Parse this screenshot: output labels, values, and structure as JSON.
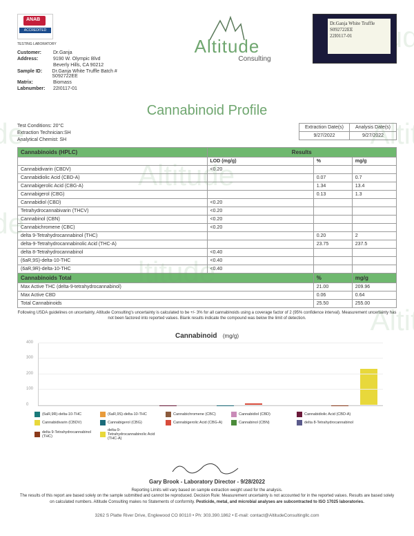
{
  "header": {
    "customer_label": "Customer:",
    "customer": "Dr.Ganja",
    "address_label": "Address:",
    "address1": "9190 W. Olympic Blvd",
    "address2": "Beverly Hills, CA 90212",
    "sample_id_label": "Sample ID:",
    "sample_id": "Dr.Ganja White Truffle Batch # S092722EE",
    "matrix_label": "Matrix:",
    "matrix": "Biomass",
    "labnumber_label": "Labnumber:",
    "labnumber": "22I0117-01",
    "accredited": "ACCREDITED",
    "testlab": "TESTING LABORATORY"
  },
  "logo": {
    "brand": "Altitude",
    "sub": "Consulting"
  },
  "photo": {
    "l1": "Dr.Ganja White Truffle",
    "l2": "S092722EE",
    "l3": "22I0117-01"
  },
  "title": "Cannabinoid Profile",
  "meta": {
    "tc": "Test Conditions: 20°C",
    "et": "Extraction Technician:SH",
    "ac": "Analytical Chemist: SH",
    "ed_label": "Extraction Date(s)",
    "ad_label": "Analysis Date(s)",
    "ed": "9/27/2022",
    "ad": "9/27/2022"
  },
  "t1": {
    "h_left": "Cannabinoids (HPLC)",
    "h_right": "Results",
    "c_lod": "LOD (mg/g)",
    "c_pct": "%",
    "c_mgg": "mg/g",
    "rows": [
      {
        "n": "Cannabidivarin (CBDV)",
        "lod": "<0.20",
        "p": "",
        "m": ""
      },
      {
        "n": "Cannabidiolic Acid (CBD-A)",
        "lod": "",
        "p": "0.07",
        "m": "0.7"
      },
      {
        "n": "Cannabigerolic Acid (CBG-A)",
        "lod": "",
        "p": "1.34",
        "m": "13.4"
      },
      {
        "n": "Cannabigerol (CBG)",
        "lod": "",
        "p": "0.13",
        "m": "1.3"
      },
      {
        "n": "Cannabidiol (CBD)",
        "lod": "<0.20",
        "p": "",
        "m": ""
      },
      {
        "n": "Tetrahydrocannabivarin (THCV)",
        "lod": "<0.20",
        "p": "",
        "m": ""
      },
      {
        "n": "Cannabinol (CBN)",
        "lod": "<0.20",
        "p": "",
        "m": ""
      },
      {
        "n": "Cannabichromene (CBC)",
        "lod": "<0.20",
        "p": "",
        "m": ""
      },
      {
        "n": "delta 9-Tetrahydrocannabinol (THC)",
        "lod": "",
        "p": "0.20",
        "m": "2"
      },
      {
        "n": "delta-9-Tetrahydrocannabinolic Acid (THC-A)",
        "lod": "",
        "p": "23.75",
        "m": "237.5"
      },
      {
        "n": "delta 8-Tetrahydrocannabinol",
        "lod": "<0.40",
        "p": "",
        "m": ""
      },
      {
        "n": "(6aR,9S)-delta-10-THC",
        "lod": "<0.40",
        "p": "",
        "m": ""
      },
      {
        "n": "(6aR,9R)-delta-10-THC",
        "lod": "<0.40",
        "p": "",
        "m": ""
      }
    ]
  },
  "t2": {
    "h": "Cannabinoids Total",
    "c_pct": "%",
    "c_mgg": "mg/g",
    "rows": [
      {
        "n": "Max Active THC (delta-9-tetrahydrocannabinol)",
        "p": "21.00",
        "m": "209.96"
      },
      {
        "n": "Max Active CBD",
        "p": "0.06",
        "m": "0.64"
      },
      {
        "n": "Total Cannabinoids",
        "p": "25.50",
        "m": "255.00"
      }
    ]
  },
  "footnote": "Following USDA guidelines on uncertainty, Altitude Consulting's uncertainty is calculated to be +/- 3% for all cannabinoids using a coverage factor of 2 (95% confidence interval). Measurement uncertainty has not been factored into reported values. Blank results indicate the compound was below the limit of detection.",
  "chart": {
    "title": "Cannabinoid",
    "unit": "(mg/g)",
    "ymax": 400,
    "yticks": [
      0,
      100,
      200,
      300,
      400
    ],
    "bars": [
      {
        "v": 0,
        "c": "#1a7a7a"
      },
      {
        "v": 0,
        "c": "#e89b3b"
      },
      {
        "v": 0,
        "c": "#8b5a3c"
      },
      {
        "v": 0,
        "c": "#c98bb8"
      },
      {
        "v": 0.7,
        "c": "#6b1a3a"
      },
      {
        "v": 0,
        "c": "#e8d83b"
      },
      {
        "v": 1.3,
        "c": "#1a6b7a"
      },
      {
        "v": 13.4,
        "c": "#d84b3b"
      },
      {
        "v": 0,
        "c": "#4b8b3a"
      },
      {
        "v": 0,
        "c": "#5a5a8b"
      },
      {
        "v": 2,
        "c": "#8b3a1a"
      },
      {
        "v": 237.5,
        "c": "#e8d83b"
      }
    ],
    "legend": [
      {
        "c": "#1a7a7a",
        "t": "(6aR,9R)-delta-10-THC"
      },
      {
        "c": "#e89b3b",
        "t": "(6aR,9S)-delta-10-THC"
      },
      {
        "c": "#8b5a3c",
        "t": "Cannabichromene (CBC)"
      },
      {
        "c": "#c98bb8",
        "t": "Cannabidiol (CBD)"
      },
      {
        "c": "#6b1a3a",
        "t": "Cannabidiolic Acid (CBD-A)"
      },
      {
        "c": "#e8d83b",
        "t": "Cannabidivarin (CBDV)"
      },
      {
        "c": "#1a6b7a",
        "t": "Cannabigerol (CBG)"
      },
      {
        "c": "#d84b3b",
        "t": "Cannabigerolic Acid (CBG-A)"
      },
      {
        "c": "#4b8b3a",
        "t": "Cannabinol (CBN)"
      },
      {
        "c": "#5a5a8b",
        "t": "delta 8-Tetrahydrocannabinol"
      },
      {
        "c": "#8b3a1a",
        "t": "delta 9-Tetrahydrocannabinol (THC)"
      },
      {
        "c": "#e8d83b",
        "t": "delta-9-Tetrahydrocannabinolic Acid (THC-A)"
      }
    ]
  },
  "sig": {
    "name": "Gary Brook - Laboratory Director - 9/28/2022"
  },
  "disclaim": "Reporting Limits will vary based on sample extraction weight used for the analysis.\nThe results of this report are based solely on the sample submitted and cannot be reproduced. Decision Rule: Measurement uncertainty is not accounted for in the reported values. Results are based solely on calculated numbers. Altitude Consulting makes no Statements of conformity. Pesticide, metal, and microbial analyses are subcontracted to ISO 17025 laboratories.",
  "footer": "3262 S Platte River Drive, Englewood CO 80110 • Ph: 303.390.1862 • E-mail: contact@AltitudeConsultingllc.com"
}
